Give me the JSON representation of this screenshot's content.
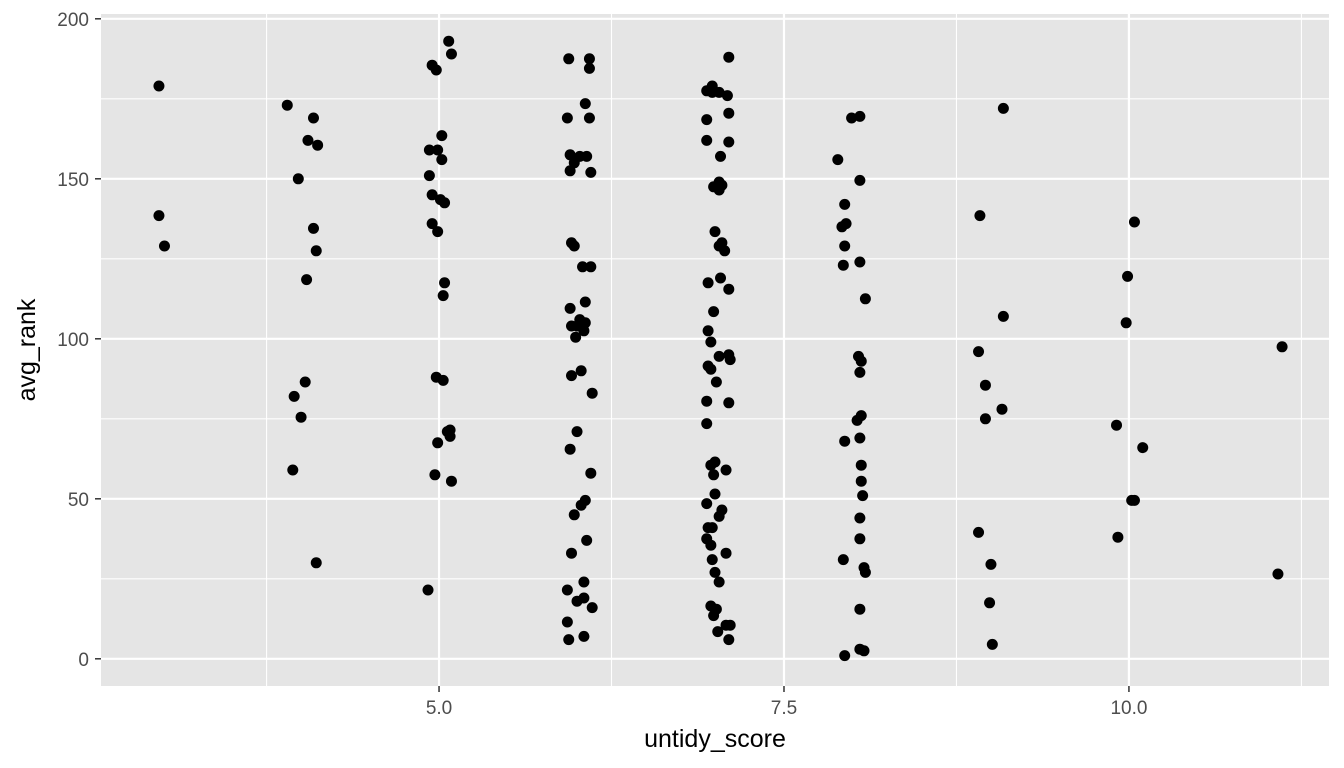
{
  "chart_data": {
    "type": "scatter",
    "title": "",
    "xlabel": "untidy_score",
    "ylabel": "avg_rank",
    "xlim": [
      2.55,
      11.45
    ],
    "ylim": [
      -8.5,
      201.5
    ],
    "x_ticks": [
      5.0,
      7.5,
      10.0
    ],
    "x_tick_labels": [
      "5.0",
      "7.5",
      "10.0"
    ],
    "y_ticks": [
      0,
      50,
      100,
      150,
      200
    ],
    "y_tick_labels": [
      "0",
      "50",
      "100",
      "150",
      "200"
    ],
    "grid": true,
    "background": "#e5e5e5",
    "grid_color": "#ffffff",
    "point_color": "#000000",
    "points": [
      {
        "x": 2.97,
        "y": 179
      },
      {
        "x": 2.97,
        "y": 138.5
      },
      {
        "x": 3.01,
        "y": 129
      },
      {
        "x": 3.9,
        "y": 173
      },
      {
        "x": 4.09,
        "y": 169
      },
      {
        "x": 4.05,
        "y": 162
      },
      {
        "x": 4.12,
        "y": 160.5
      },
      {
        "x": 3.98,
        "y": 150
      },
      {
        "x": 4.09,
        "y": 134.5
      },
      {
        "x": 4.11,
        "y": 127.5
      },
      {
        "x": 4.04,
        "y": 118.5
      },
      {
        "x": 4.03,
        "y": 86.5
      },
      {
        "x": 3.95,
        "y": 82
      },
      {
        "x": 4.0,
        "y": 75.5
      },
      {
        "x": 3.94,
        "y": 59
      },
      {
        "x": 4.11,
        "y": 30
      },
      {
        "x": 5.07,
        "y": 193
      },
      {
        "x": 5.09,
        "y": 189
      },
      {
        "x": 4.95,
        "y": 185.5
      },
      {
        "x": 4.98,
        "y": 184
      },
      {
        "x": 5.02,
        "y": 163.5
      },
      {
        "x": 4.93,
        "y": 159
      },
      {
        "x": 4.99,
        "y": 159
      },
      {
        "x": 5.02,
        "y": 156
      },
      {
        "x": 4.93,
        "y": 151
      },
      {
        "x": 4.95,
        "y": 145
      },
      {
        "x": 5.01,
        "y": 143.5
      },
      {
        "x": 5.04,
        "y": 142.5
      },
      {
        "x": 4.95,
        "y": 136
      },
      {
        "x": 4.99,
        "y": 133.5
      },
      {
        "x": 5.04,
        "y": 117.5
      },
      {
        "x": 5.03,
        "y": 113.5
      },
      {
        "x": 4.98,
        "y": 88
      },
      {
        "x": 5.03,
        "y": 87
      },
      {
        "x": 5.06,
        "y": 71
      },
      {
        "x": 5.08,
        "y": 71.5
      },
      {
        "x": 5.08,
        "y": 69.5
      },
      {
        "x": 4.99,
        "y": 67.5
      },
      {
        "x": 4.97,
        "y": 57.5
      },
      {
        "x": 5.09,
        "y": 55.5
      },
      {
        "x": 4.92,
        "y": 21.5
      },
      {
        "x": 5.94,
        "y": 187.5
      },
      {
        "x": 6.09,
        "y": 187.5
      },
      {
        "x": 6.09,
        "y": 184.5
      },
      {
        "x": 6.06,
        "y": 173.5
      },
      {
        "x": 5.93,
        "y": 169
      },
      {
        "x": 6.09,
        "y": 169
      },
      {
        "x": 5.95,
        "y": 157.5
      },
      {
        "x": 6.02,
        "y": 157
      },
      {
        "x": 6.07,
        "y": 157
      },
      {
        "x": 5.98,
        "y": 155
      },
      {
        "x": 5.95,
        "y": 152.5
      },
      {
        "x": 6.1,
        "y": 152
      },
      {
        "x": 5.96,
        "y": 130
      },
      {
        "x": 5.98,
        "y": 129
      },
      {
        "x": 6.04,
        "y": 122.5
      },
      {
        "x": 6.1,
        "y": 122.5
      },
      {
        "x": 6.06,
        "y": 111.5
      },
      {
        "x": 5.95,
        "y": 109.5
      },
      {
        "x": 6.02,
        "y": 106
      },
      {
        "x": 5.96,
        "y": 104
      },
      {
        "x": 6.0,
        "y": 104
      },
      {
        "x": 6.06,
        "y": 105
      },
      {
        "x": 6.05,
        "y": 102.5
      },
      {
        "x": 5.99,
        "y": 100.5
      },
      {
        "x": 6.03,
        "y": 90
      },
      {
        "x": 5.96,
        "y": 88.5
      },
      {
        "x": 6.11,
        "y": 83
      },
      {
        "x": 6.0,
        "y": 71
      },
      {
        "x": 5.95,
        "y": 65.5
      },
      {
        "x": 6.1,
        "y": 58
      },
      {
        "x": 6.06,
        "y": 49.5
      },
      {
        "x": 6.03,
        "y": 48
      },
      {
        "x": 5.98,
        "y": 45
      },
      {
        "x": 6.07,
        "y": 37
      },
      {
        "x": 5.96,
        "y": 33
      },
      {
        "x": 6.05,
        "y": 24
      },
      {
        "x": 5.93,
        "y": 21.5
      },
      {
        "x": 6.05,
        "y": 19
      },
      {
        "x": 6.0,
        "y": 18
      },
      {
        "x": 6.11,
        "y": 16
      },
      {
        "x": 5.93,
        "y": 11.5
      },
      {
        "x": 6.05,
        "y": 7
      },
      {
        "x": 5.94,
        "y": 6
      },
      {
        "x": 7.1,
        "y": 188
      },
      {
        "x": 6.98,
        "y": 179
      },
      {
        "x": 6.94,
        "y": 177.5
      },
      {
        "x": 6.98,
        "y": 177
      },
      {
        "x": 7.03,
        "y": 177
      },
      {
        "x": 7.09,
        "y": 176
      },
      {
        "x": 7.1,
        "y": 170.5
      },
      {
        "x": 6.94,
        "y": 168.5
      },
      {
        "x": 6.94,
        "y": 162
      },
      {
        "x": 7.1,
        "y": 161.5
      },
      {
        "x": 7.04,
        "y": 157
      },
      {
        "x": 7.03,
        "y": 149
      },
      {
        "x": 6.99,
        "y": 147.5
      },
      {
        "x": 7.02,
        "y": 147.5
      },
      {
        "x": 7.05,
        "y": 148
      },
      {
        "x": 7.03,
        "y": 146.5
      },
      {
        "x": 7.0,
        "y": 133.5
      },
      {
        "x": 7.05,
        "y": 130
      },
      {
        "x": 7.03,
        "y": 129
      },
      {
        "x": 7.07,
        "y": 127.5
      },
      {
        "x": 7.04,
        "y": 119
      },
      {
        "x": 6.95,
        "y": 117.5
      },
      {
        "x": 7.1,
        "y": 115.5
      },
      {
        "x": 6.99,
        "y": 108.5
      },
      {
        "x": 6.95,
        "y": 102.5
      },
      {
        "x": 6.97,
        "y": 99
      },
      {
        "x": 7.03,
        "y": 94.5
      },
      {
        "x": 7.1,
        "y": 95
      },
      {
        "x": 7.11,
        "y": 93.5
      },
      {
        "x": 6.95,
        "y": 91.5
      },
      {
        "x": 6.97,
        "y": 90.5
      },
      {
        "x": 7.01,
        "y": 86.5
      },
      {
        "x": 6.94,
        "y": 80.5
      },
      {
        "x": 7.1,
        "y": 80
      },
      {
        "x": 6.94,
        "y": 73.5
      },
      {
        "x": 7.0,
        "y": 61.5
      },
      {
        "x": 6.97,
        "y": 60.5
      },
      {
        "x": 7.08,
        "y": 59
      },
      {
        "x": 6.99,
        "y": 57.5
      },
      {
        "x": 7.0,
        "y": 51.5
      },
      {
        "x": 6.94,
        "y": 48.5
      },
      {
        "x": 7.05,
        "y": 46.5
      },
      {
        "x": 7.03,
        "y": 44.5
      },
      {
        "x": 6.95,
        "y": 41
      },
      {
        "x": 6.98,
        "y": 41
      },
      {
        "x": 6.94,
        "y": 37.5
      },
      {
        "x": 6.97,
        "y": 35.5
      },
      {
        "x": 7.08,
        "y": 33
      },
      {
        "x": 6.98,
        "y": 31
      },
      {
        "x": 7.0,
        "y": 27
      },
      {
        "x": 7.03,
        "y": 24
      },
      {
        "x": 6.97,
        "y": 16.5
      },
      {
        "x": 7.01,
        "y": 15.5
      },
      {
        "x": 6.99,
        "y": 13.5
      },
      {
        "x": 7.08,
        "y": 10.5
      },
      {
        "x": 7.11,
        "y": 10.5
      },
      {
        "x": 7.02,
        "y": 8.5
      },
      {
        "x": 7.1,
        "y": 6
      },
      {
        "x": 8.05,
        "y": 169.5
      },
      {
        "x": 7.99,
        "y": 169
      },
      {
        "x": 7.89,
        "y": 156
      },
      {
        "x": 8.05,
        "y": 149.5
      },
      {
        "x": 7.94,
        "y": 142
      },
      {
        "x": 7.92,
        "y": 135
      },
      {
        "x": 7.95,
        "y": 136
      },
      {
        "x": 7.94,
        "y": 129
      },
      {
        "x": 8.05,
        "y": 124
      },
      {
        "x": 7.93,
        "y": 123
      },
      {
        "x": 8.09,
        "y": 112.5
      },
      {
        "x": 8.04,
        "y": 94.5
      },
      {
        "x": 8.06,
        "y": 93
      },
      {
        "x": 8.05,
        "y": 89.5
      },
      {
        "x": 8.06,
        "y": 76
      },
      {
        "x": 8.03,
        "y": 74.5
      },
      {
        "x": 8.05,
        "y": 69
      },
      {
        "x": 7.94,
        "y": 68
      },
      {
        "x": 8.06,
        "y": 60.5
      },
      {
        "x": 8.06,
        "y": 55.5
      },
      {
        "x": 8.07,
        "y": 51
      },
      {
        "x": 8.05,
        "y": 44
      },
      {
        "x": 8.05,
        "y": 37.5
      },
      {
        "x": 7.93,
        "y": 31
      },
      {
        "x": 8.08,
        "y": 28.5
      },
      {
        "x": 8.09,
        "y": 27
      },
      {
        "x": 8.05,
        "y": 15.5
      },
      {
        "x": 8.05,
        "y": 3
      },
      {
        "x": 8.08,
        "y": 2.5
      },
      {
        "x": 7.94,
        "y": 1
      },
      {
        "x": 9.09,
        "y": 172
      },
      {
        "x": 8.92,
        "y": 138.5
      },
      {
        "x": 9.09,
        "y": 107
      },
      {
        "x": 8.91,
        "y": 96
      },
      {
        "x": 8.96,
        "y": 85.5
      },
      {
        "x": 9.08,
        "y": 78
      },
      {
        "x": 8.96,
        "y": 75
      },
      {
        "x": 8.91,
        "y": 39.5
      },
      {
        "x": 9.0,
        "y": 29.5
      },
      {
        "x": 8.99,
        "y": 17.5
      },
      {
        "x": 9.01,
        "y": 4.5
      },
      {
        "x": 10.04,
        "y": 136.5
      },
      {
        "x": 9.99,
        "y": 119.5
      },
      {
        "x": 9.98,
        "y": 105
      },
      {
        "x": 9.91,
        "y": 73
      },
      {
        "x": 10.1,
        "y": 66
      },
      {
        "x": 10.02,
        "y": 49.5
      },
      {
        "x": 10.04,
        "y": 49.5
      },
      {
        "x": 9.92,
        "y": 38
      },
      {
        "x": 11.11,
        "y": 97.5
      },
      {
        "x": 11.08,
        "y": 26.5
      }
    ]
  }
}
